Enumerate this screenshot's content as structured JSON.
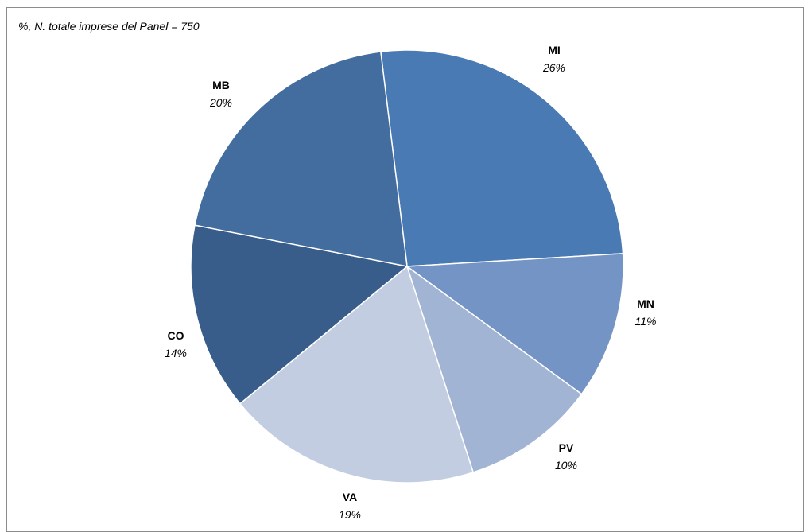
{
  "chart_data": {
    "type": "pie",
    "subtitle": "%, N. totale imprese del Panel = 750",
    "slices": [
      {
        "label": "MI",
        "value": 26,
        "value_label": "26%",
        "color": "#4a7ab3"
      },
      {
        "label": "MN",
        "value": 11,
        "value_label": "11%",
        "color": "#7394c4"
      },
      {
        "label": "PV",
        "value": 10,
        "value_label": "10%",
        "color": "#a2b4d4"
      },
      {
        "label": "VA",
        "value": 19,
        "value_label": "19%",
        "color": "#c3cde2"
      },
      {
        "label": "CO",
        "value": 14,
        "value_label": "14%",
        "color": "#385d8a"
      },
      {
        "label": "MB",
        "value": 20,
        "value_label": "20%",
        "color": "#436d9f"
      }
    ],
    "start_angle_deg": -7
  }
}
